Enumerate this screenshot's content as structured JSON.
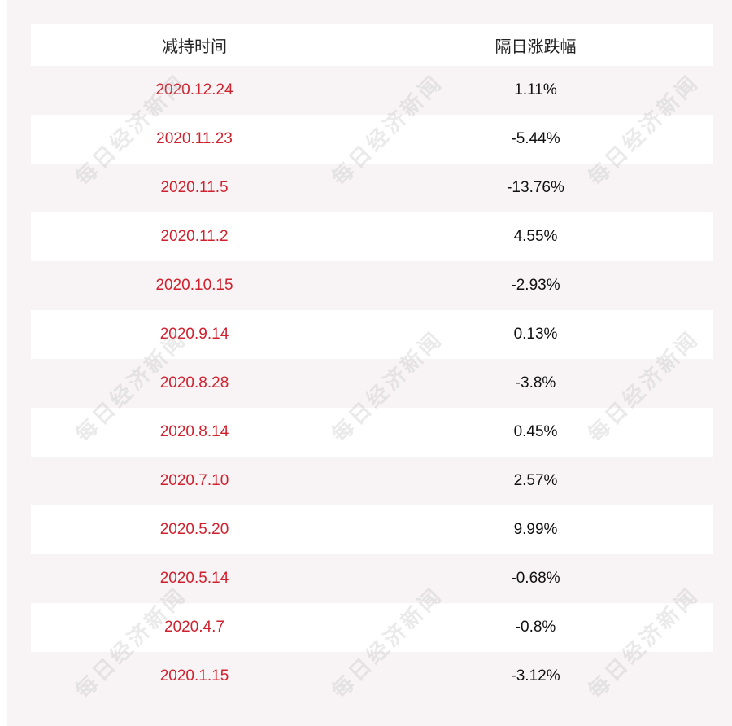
{
  "header": {
    "col1": "减持时间",
    "col2": "隔日涨跌幅"
  },
  "rows": [
    {
      "date": "2020.12.24",
      "change": "1.11%"
    },
    {
      "date": "2020.11.23",
      "change": "-5.44%"
    },
    {
      "date": "2020.11.5",
      "change": "-13.76%"
    },
    {
      "date": "2020.11.2",
      "change": "4.55%"
    },
    {
      "date": "2020.10.15",
      "change": "-2.93%"
    },
    {
      "date": "2020.9.14",
      "change": "0.13%"
    },
    {
      "date": "2020.8.28",
      "change": "-3.8%"
    },
    {
      "date": "2020.8.14",
      "change": "0.45%"
    },
    {
      "date": "2020.7.10",
      "change": "2.57%"
    },
    {
      "date": "2020.5.20",
      "change": "9.99%"
    },
    {
      "date": "2020.5.14",
      "change": "-0.68%"
    },
    {
      "date": "2020.4.7",
      "change": "-0.8%"
    },
    {
      "date": "2020.1.15",
      "change": "-3.12%"
    }
  ],
  "watermark": "每日经济新闻",
  "colors": {
    "date": "#d0212e",
    "value": "#111111",
    "stripe": "#f8f4f5"
  }
}
